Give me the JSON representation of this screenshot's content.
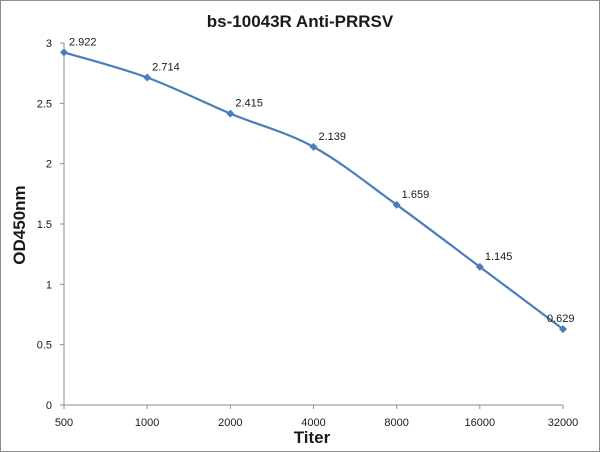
{
  "chart_data": {
    "type": "line",
    "title": "bs-10043R Anti-PRRSV",
    "xlabel": "Titer",
    "ylabel": "OD450nm",
    "categories": [
      "500",
      "1000",
      "2000",
      "4000",
      "8000",
      "16000",
      "32000"
    ],
    "y_ticks": [
      "0",
      "0.5",
      "1",
      "1.5",
      "2",
      "2.5",
      "3"
    ],
    "ylim": [
      0,
      3
    ],
    "grid": false,
    "legend": "none",
    "series": [
      {
        "values": [
          2.922,
          2.714,
          2.415,
          2.139,
          1.659,
          1.145,
          0.629
        ],
        "labels": [
          "2.922",
          "2.714",
          "2.415",
          "2.139",
          "1.659",
          "1.145",
          "0.629"
        ],
        "color": "#4a7ebb",
        "marker": "diamond"
      }
    ]
  }
}
